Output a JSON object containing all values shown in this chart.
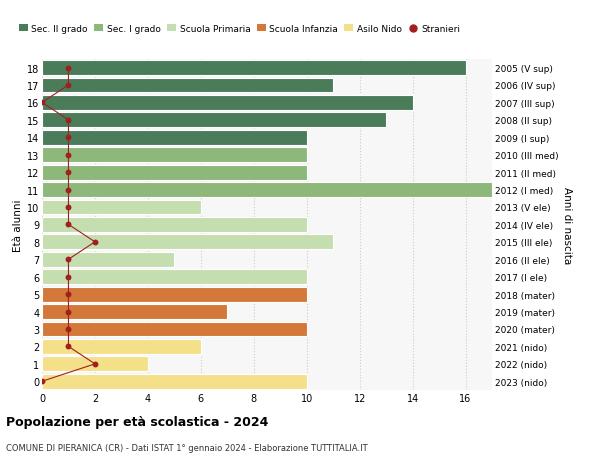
{
  "ages": [
    18,
    17,
    16,
    15,
    14,
    13,
    12,
    11,
    10,
    9,
    8,
    7,
    6,
    5,
    4,
    3,
    2,
    1,
    0
  ],
  "right_labels": [
    "2005 (V sup)",
    "2006 (IV sup)",
    "2007 (III sup)",
    "2008 (II sup)",
    "2009 (I sup)",
    "2010 (III med)",
    "2011 (II med)",
    "2012 (I med)",
    "2013 (V ele)",
    "2014 (IV ele)",
    "2015 (III ele)",
    "2016 (II ele)",
    "2017 (I ele)",
    "2018 (mater)",
    "2019 (mater)",
    "2020 (mater)",
    "2021 (nido)",
    "2022 (nido)",
    "2023 (nido)"
  ],
  "values": [
    16,
    11,
    14,
    13,
    10,
    10,
    10,
    17,
    6,
    10,
    11,
    5,
    10,
    10,
    7,
    10,
    6,
    4,
    10
  ],
  "colors": [
    "#4a7c59",
    "#4a7c59",
    "#4a7c59",
    "#4a7c59",
    "#4a7c59",
    "#8db87a",
    "#8db87a",
    "#8db87a",
    "#c5deb0",
    "#c5deb0",
    "#c5deb0",
    "#c5deb0",
    "#c5deb0",
    "#d4783a",
    "#d4783a",
    "#d4783a",
    "#f5e08a",
    "#f5e08a",
    "#f5e08a"
  ],
  "stranieri_x": [
    1,
    1,
    0,
    1,
    1,
    1,
    1,
    1,
    1,
    1,
    2,
    1,
    1,
    1,
    1,
    1,
    1,
    2,
    0
  ],
  "legend_labels": [
    "Sec. II grado",
    "Sec. I grado",
    "Scuola Primaria",
    "Scuola Infanzia",
    "Asilo Nido",
    "Stranieri"
  ],
  "legend_colors": [
    "#4a7c59",
    "#8db87a",
    "#c5deb0",
    "#d4783a",
    "#f5e08a",
    "#a02020"
  ],
  "title": "Popolazione per età scolastica - 2024",
  "subtitle": "COMUNE DI PIERANICA (CR) - Dati ISTAT 1° gennaio 2024 - Elaborazione TUTTITALIA.IT",
  "ylabel_left": "Età alunni",
  "ylabel_right": "Anni di nascita",
  "xlim": [
    0,
    17
  ],
  "background_color": "#ffffff",
  "plot_bg_color": "#f7f7f7",
  "bar_edgecolor": "#ffffff",
  "grid_color": "#cccccc"
}
